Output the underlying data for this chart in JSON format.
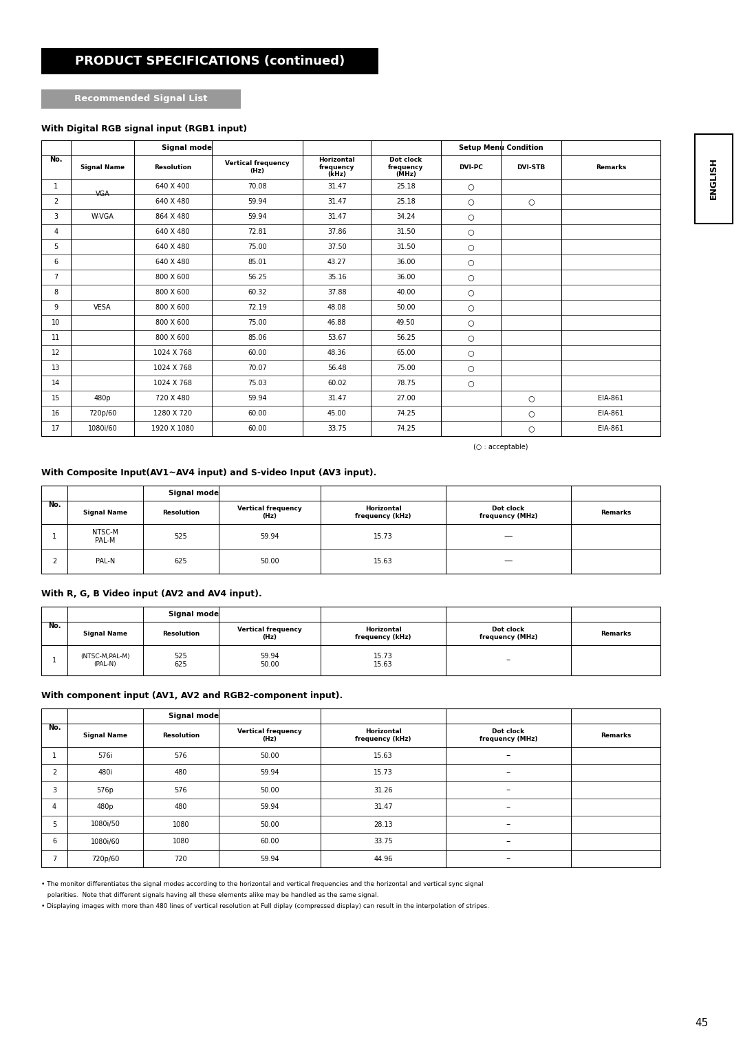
{
  "title1": "PRODUCT SPECIFICATIONS (continued)",
  "subtitle1": "Recommended Signal List",
  "section1_title": "With Digital RGB signal input (RGB1 input)",
  "section2_title": "With Composite Input(AV1~AV4 input) and S-video Input (AV3 input).",
  "section3_title": "With R, G, B Video input (AV2 and AV4 input).",
  "section4_title": "With component input (AV1, AV2 and RGB2-component input).",
  "section1_data": [
    [
      "1",
      "VGA",
      "640 X 400",
      "70.08",
      "31.47",
      "25.18",
      "O",
      "",
      ""
    ],
    [
      "2",
      "VGA",
      "640 X 480",
      "59.94",
      "31.47",
      "25.18",
      "O",
      "O",
      ""
    ],
    [
      "3",
      "W-VGA",
      "864 X 480",
      "59.94",
      "31.47",
      "34.24",
      "O",
      "",
      ""
    ],
    [
      "4",
      "VESA",
      "640 X 480",
      "72.81",
      "37.86",
      "31.50",
      "O",
      "",
      ""
    ],
    [
      "5",
      "VESA",
      "640 X 480",
      "75.00",
      "37.50",
      "31.50",
      "O",
      "",
      ""
    ],
    [
      "6",
      "VESA",
      "640 X 480",
      "85.01",
      "43.27",
      "36.00",
      "O",
      "",
      ""
    ],
    [
      "7",
      "VESA",
      "800 X 600",
      "56.25",
      "35.16",
      "36.00",
      "O",
      "",
      ""
    ],
    [
      "8",
      "VESA",
      "800 X 600",
      "60.32",
      "37.88",
      "40.00",
      "O",
      "",
      ""
    ],
    [
      "9",
      "VESA",
      "800 X 600",
      "72.19",
      "48.08",
      "50.00",
      "O",
      "",
      ""
    ],
    [
      "10",
      "VESA",
      "800 X 600",
      "75.00",
      "46.88",
      "49.50",
      "O",
      "",
      ""
    ],
    [
      "11",
      "VESA",
      "800 X 600",
      "85.06",
      "53.67",
      "56.25",
      "O",
      "",
      ""
    ],
    [
      "12",
      "VESA",
      "1024 X 768",
      "60.00",
      "48.36",
      "65.00",
      "O",
      "",
      ""
    ],
    [
      "13",
      "VESA",
      "1024 X 768",
      "70.07",
      "56.48",
      "75.00",
      "O",
      "",
      ""
    ],
    [
      "14",
      "VESA",
      "1024 X 768",
      "75.03",
      "60.02",
      "78.75",
      "O",
      "",
      ""
    ],
    [
      "15",
      "480p",
      "720 X 480",
      "59.94",
      "31.47",
      "27.00",
      "",
      "O",
      "EIA-861"
    ],
    [
      "16",
      "720p/60",
      "1280 X 720",
      "60.00",
      "45.00",
      "74.25",
      "",
      "O",
      "EIA-861"
    ],
    [
      "17",
      "1080i/60",
      "1920 X 1080",
      "60.00",
      "33.75",
      "74.25",
      "",
      "O",
      "EIA-861"
    ]
  ],
  "section2_data": [
    [
      "1",
      "NTSC-M\nPAL-M",
      "525",
      "59.94",
      "15.73",
      "—",
      ""
    ],
    [
      "2",
      "PAL-N",
      "625",
      "50.00",
      "15.63",
      "—",
      ""
    ]
  ],
  "section3_data": [
    [
      "1",
      "(NTSC-M,PAL-M)\n(PAL-N)",
      "525\n625",
      "59.94\n50.00",
      "15.73\n15.63",
      "–",
      ""
    ]
  ],
  "section4_data": [
    [
      "1",
      "576i",
      "576",
      "50.00",
      "15.63",
      "–",
      ""
    ],
    [
      "2",
      "480i",
      "480",
      "59.94",
      "15.73",
      "–",
      ""
    ],
    [
      "3",
      "576p",
      "576",
      "50.00",
      "31.26",
      "–",
      ""
    ],
    [
      "4",
      "480p",
      "480",
      "59.94",
      "31.47",
      "–",
      ""
    ],
    [
      "5",
      "1080i/50",
      "1080",
      "50.00",
      "28.13",
      "–",
      ""
    ],
    [
      "6",
      "1080i/60",
      "1080",
      "60.00",
      "33.75",
      "–",
      ""
    ],
    [
      "7",
      "720p/60",
      "720",
      "59.94",
      "44.96",
      "–",
      ""
    ]
  ],
  "footnote1": "• The monitor differentiates the signal modes according to the horizontal and vertical frequencies and the horizontal and vertical sync signal",
  "footnote2": "   polarities.  Note that different signals having all these elements alike may be handled as the same signal.",
  "footnote3": "• Displaying images with more than 480 lines of vertical resolution at Full diplay (compressed display) can result in the interpolation of stripes.",
  "page_number": "45",
  "acceptable_note": "(○ : acceptable)"
}
